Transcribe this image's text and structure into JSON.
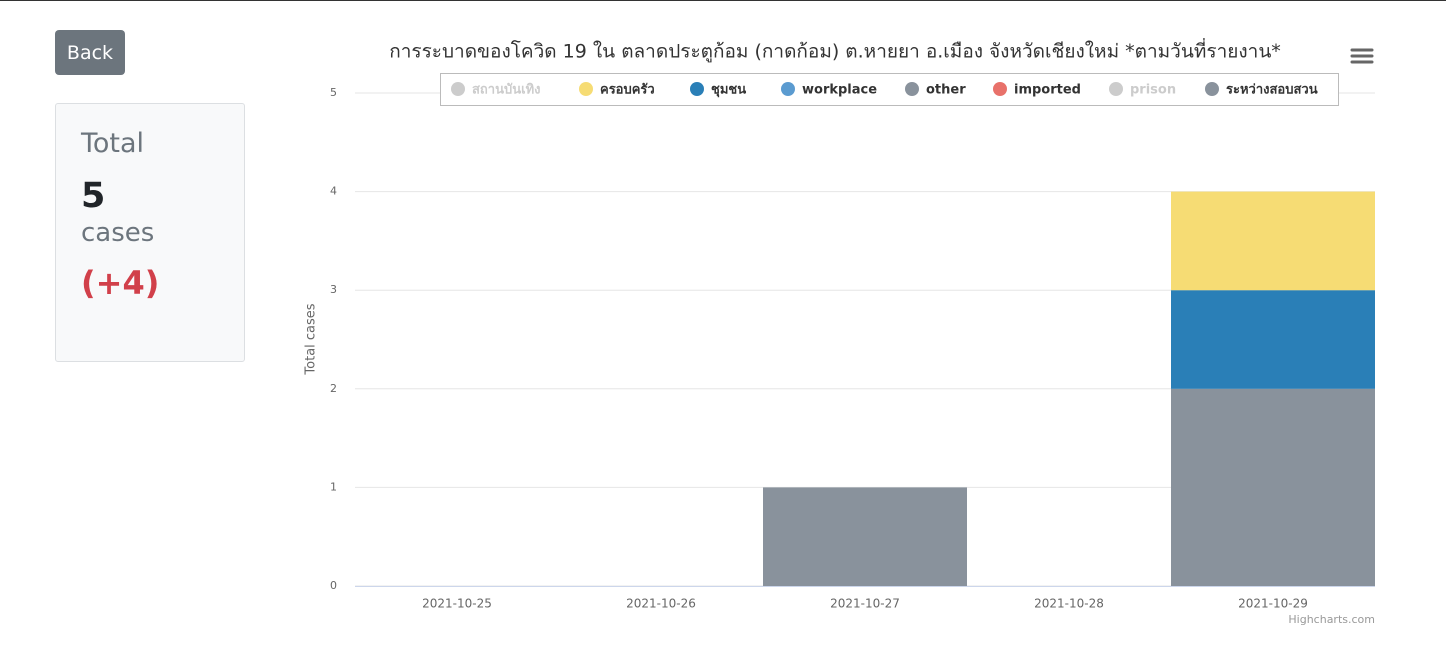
{
  "back_button": "Back",
  "summary": {
    "label": "Total",
    "count": 5,
    "unit": "cases",
    "change": "(+4)"
  },
  "chart_data": {
    "type": "bar",
    "stacked": true,
    "title": "การระบาดของโควิด 19 ใน ตลาดประตูก้อม (กาดก้อม) ต.หายยา อ.เมือง จังหวัดเชียงใหม่ *ตามวันที่รายงาน*",
    "y_label": "Total cases",
    "credit": "Highcharts.com",
    "categories": [
      "2021-10-25",
      "2021-10-26",
      "2021-10-27",
      "2021-10-28",
      "2021-10-29"
    ],
    "series": [
      {
        "name": "สถานบันเทิง",
        "color": "#cccccc",
        "hidden": true,
        "values": [
          0,
          0,
          0,
          0,
          0
        ]
      },
      {
        "name": "ครอบครัว",
        "color": "#f6dc74",
        "values": [
          0,
          0,
          0,
          0,
          1
        ]
      },
      {
        "name": "ชุมชน",
        "color": "#2a7fb7",
        "values": [
          0,
          0,
          0,
          0,
          1
        ]
      },
      {
        "name": "workplace",
        "color": "#5b9bd0",
        "values": [
          0,
          0,
          0,
          0,
          0
        ]
      },
      {
        "name": "other",
        "color": "#89929c",
        "values": [
          0,
          0,
          0,
          0,
          0
        ]
      },
      {
        "name": "imported",
        "color": "#e8716a",
        "values": [
          0,
          0,
          0,
          0,
          0
        ]
      },
      {
        "name": "prison",
        "color": "#cccccc",
        "hidden": true,
        "values": [
          0,
          0,
          0,
          0,
          0
        ]
      },
      {
        "name": "ระหว่างสอบสวน",
        "color": "#89929c",
        "values": [
          0,
          0,
          1,
          0,
          2
        ]
      }
    ],
    "ylim": [
      0,
      5
    ],
    "yticks": [
      0,
      1,
      2,
      3,
      4,
      5
    ],
    "grid": true
  }
}
